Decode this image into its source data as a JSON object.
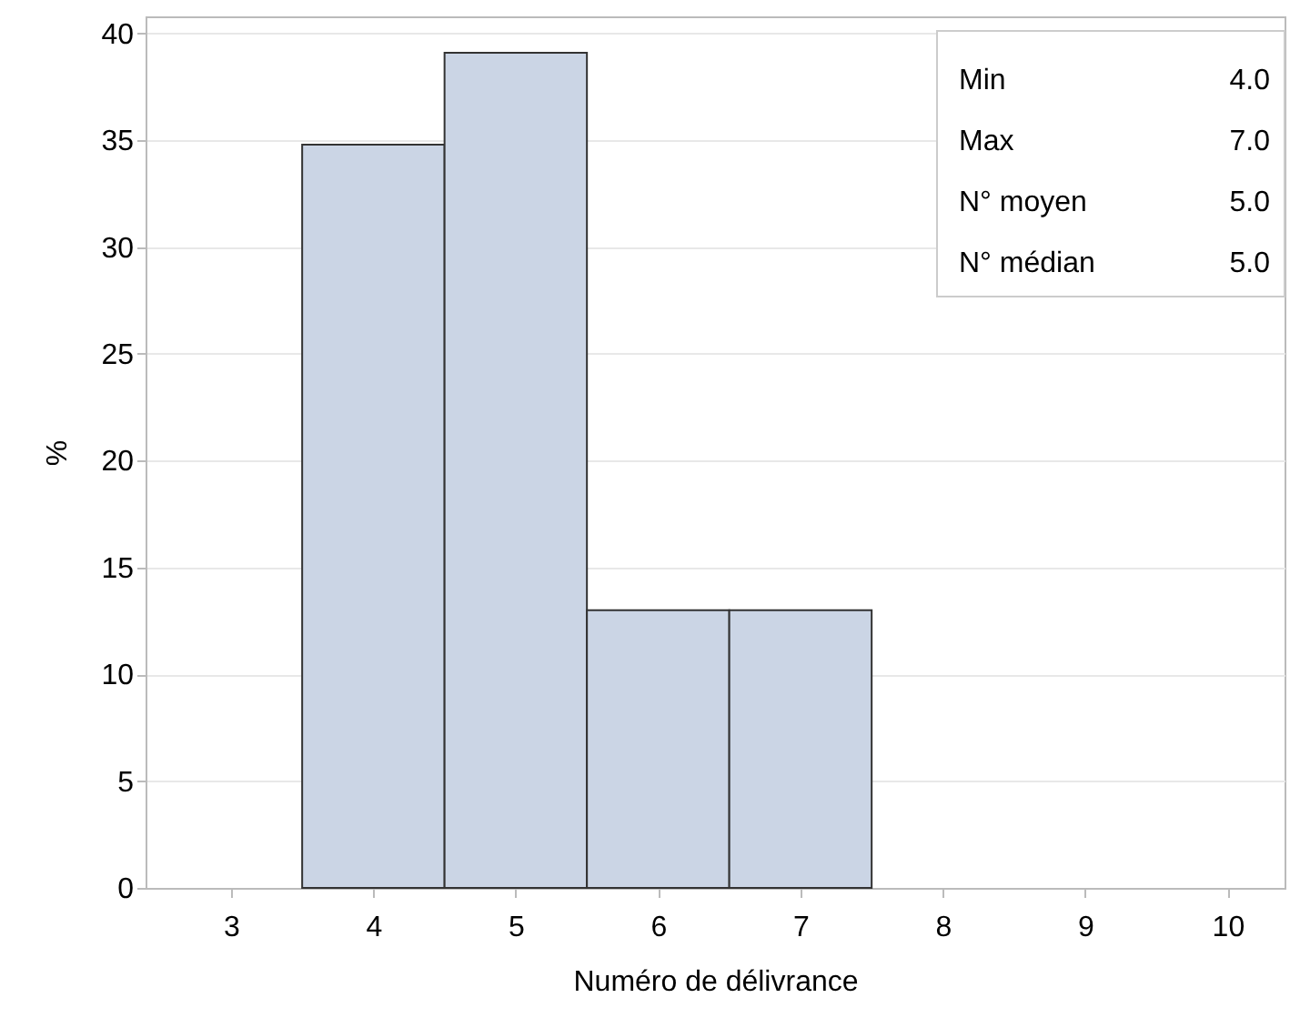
{
  "chart_data": {
    "type": "histogram",
    "xlabel": "Numéro de délivrance",
    "ylabel": "%",
    "bins": [
      3.5,
      4.5,
      5.5,
      6.5,
      7.5
    ],
    "values": [
      34.8,
      39.1,
      13.0,
      13.0
    ],
    "color": "#cbd5e5",
    "xlim": [
      2.4,
      10.4
    ],
    "xticks": [
      3,
      4,
      5,
      6,
      7,
      8,
      9,
      10
    ],
    "ylim": [
      0,
      40.8
    ],
    "yticks": [
      0,
      5,
      10,
      15,
      20,
      25,
      30,
      35,
      40
    ],
    "grid": "y",
    "annotations": [
      "Min",
      "4.0",
      "Max",
      "7.0",
      "N° moyen",
      "5.0",
      "N° médian",
      "5.0"
    ]
  }
}
